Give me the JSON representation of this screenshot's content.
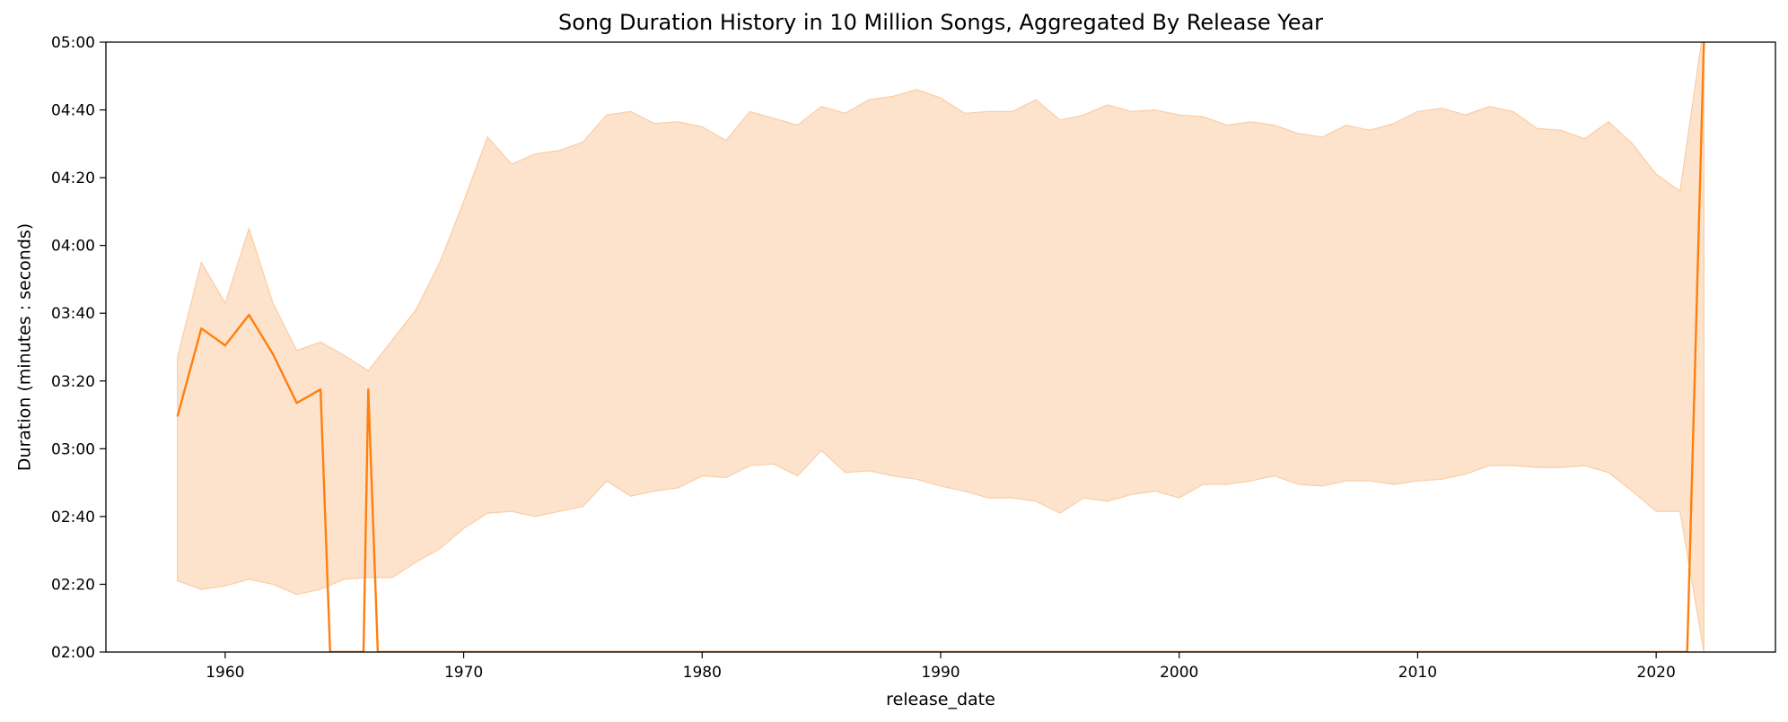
{
  "chart_data": {
    "type": "line",
    "title": "Song Duration History in 10 Million Songs, Aggregated By Release Year",
    "xlabel": "release_date",
    "ylabel": "Duration (minutes : seconds)",
    "xlim": [
      1955,
      2025
    ],
    "ylim": [
      120,
      300
    ],
    "x_ticks": [
      1960,
      1970,
      1980,
      1990,
      2000,
      2010,
      2020
    ],
    "y_ticks": [
      {
        "value": 120,
        "label": "02:00"
      },
      {
        "value": 140,
        "label": "02:20"
      },
      {
        "value": 160,
        "label": "02:40"
      },
      {
        "value": 180,
        "label": "03:00"
      },
      {
        "value": 200,
        "label": "03:20"
      },
      {
        "value": 220,
        "label": "03:40"
      },
      {
        "value": 240,
        "label": "04:00"
      },
      {
        "value": 260,
        "label": "04:20"
      },
      {
        "value": 280,
        "label": "04:40"
      },
      {
        "value": 300,
        "label": "05:00"
      }
    ],
    "grid": false,
    "legend": "none",
    "colors": {
      "line": "#ff7f0e",
      "band": "#fde3cc",
      "band_edge": "#f9cda6",
      "axis": "#000000"
    },
    "series": [
      {
        "values": [
          [
            1958,
            189.5
          ],
          [
            1959,
            215.5
          ],
          [
            1960,
            210.5
          ],
          [
            1961,
            219.5
          ],
          [
            1962,
            208
          ],
          [
            1963,
            193.5
          ],
          [
            1964,
            197.5
          ],
          [
            1964.4,
            120
          ],
          [
            1965.8,
            120
          ],
          [
            1966,
            197.5
          ],
          [
            1966.4,
            120
          ],
          [
            2021.3,
            120
          ],
          [
            2022,
            300
          ]
        ]
      }
    ],
    "band": {
      "x": [
        1958,
        1959,
        1960,
        1961,
        1962,
        1963,
        1964,
        1965,
        1966,
        1967,
        1968,
        1969,
        1970,
        1971,
        1972,
        1973,
        1974,
        1975,
        1976,
        1977,
        1978,
        1979,
        1980,
        1981,
        1982,
        1983,
        1984,
        1985,
        1986,
        1987,
        1988,
        1989,
        1990,
        1991,
        1992,
        1993,
        1994,
        1995,
        1996,
        1997,
        1998,
        1999,
        2000,
        2001,
        2002,
        2003,
        2004,
        2005,
        2006,
        2007,
        2008,
        2009,
        2010,
        2011,
        2012,
        2013,
        2014,
        2015,
        2016,
        2017,
        2018,
        2019,
        2020,
        2021,
        2022
      ],
      "upper": [
        207,
        235,
        223,
        245,
        223,
        209,
        211.5,
        207.5,
        203,
        212,
        221,
        235,
        253,
        272,
        264,
        267,
        268,
        270.5,
        278.5,
        279.5,
        276,
        276.5,
        275,
        271,
        279.5,
        277.5,
        275.5,
        281,
        279,
        283,
        284,
        286,
        283.5,
        279,
        279.5,
        279.5,
        283,
        277,
        278.5,
        281.5,
        279.5,
        280,
        278.5,
        278,
        275.5,
        276.5,
        275.5,
        273,
        272,
        275.5,
        274,
        276,
        279.5,
        280.5,
        278.5,
        281,
        279.5,
        274.5,
        274,
        271.5,
        276.5,
        270,
        261,
        256,
        305
      ],
      "lower": [
        141,
        138.5,
        139.5,
        141.5,
        140,
        137,
        138.5,
        141.5,
        142,
        142,
        146.5,
        150.5,
        156.5,
        161,
        161.5,
        160,
        161.5,
        163,
        170.5,
        166,
        167.5,
        168.5,
        172,
        171.5,
        175,
        175.5,
        172,
        179.5,
        173,
        173.5,
        172,
        171,
        169,
        167.5,
        165.5,
        165.5,
        164.5,
        161,
        165.5,
        164.5,
        166.5,
        167.5,
        165.5,
        169.5,
        169.5,
        170.5,
        172,
        169.5,
        169,
        170.5,
        170.5,
        169.5,
        170.5,
        171,
        172.5,
        175,
        175,
        174.5,
        174.5,
        175,
        173,
        167.5,
        161.5,
        161.5,
        120
      ]
    }
  }
}
